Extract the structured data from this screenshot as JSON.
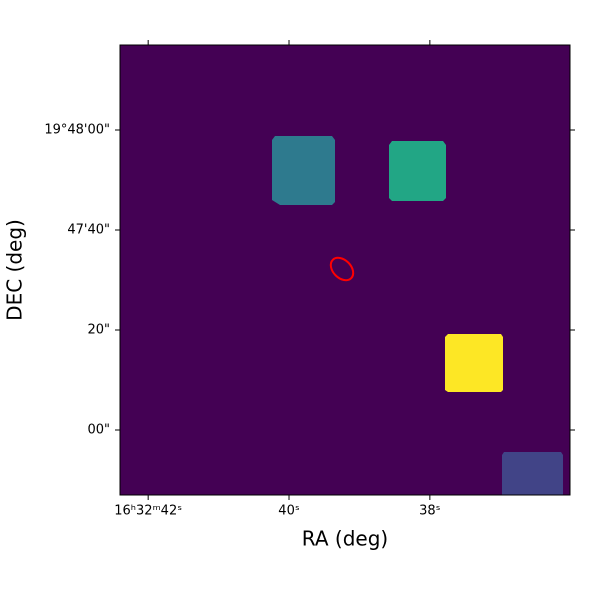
{
  "chart_data": {
    "type": "image",
    "x_label": "RA (deg)",
    "y_label": "DEC (deg)",
    "xlim": [
      42.4,
      36.01
    ],
    "xticks": [
      {
        "value": 42,
        "label": "16ʰ32ᵐ42ˢ"
      },
      {
        "value": 40,
        "label": "40ˢ"
      },
      {
        "value": 38,
        "label": "38ˢ"
      }
    ],
    "ylim": [
      -13,
      77
    ],
    "yticks": [
      {
        "value": 60,
        "label": "19°48'00\""
      },
      {
        "value": 40,
        "label": "47'40\""
      },
      {
        "value": 20,
        "label": "20\""
      },
      {
        "value": 0,
        "label": "00\""
      }
    ]
  }
}
